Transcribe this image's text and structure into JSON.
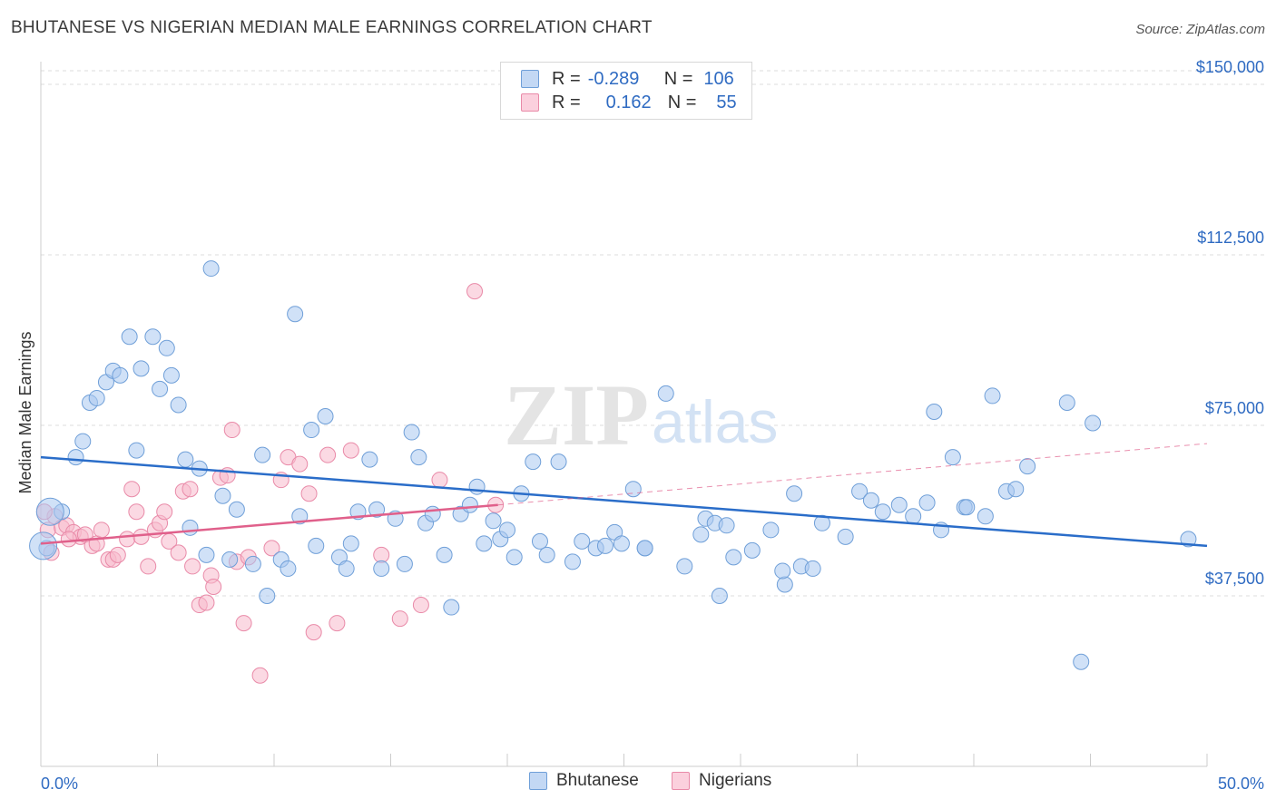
{
  "header": {
    "title": "BHUTANESE VS NIGERIAN MEDIAN MALE EARNINGS CORRELATION CHART",
    "source": "Source: ZipAtlas.com"
  },
  "watermark": {
    "zip": "ZIP",
    "atlas": "atlas"
  },
  "legend_top": {
    "rows": [
      {
        "r_label": "R =",
        "r_value": "-0.289",
        "n_label": "N =",
        "n_value": "106",
        "color": "#a9c8f0"
      },
      {
        "r_label": "R =",
        "r_value": "0.162",
        "n_label": "N =",
        "n_value": "55",
        "color": "#f7b9cc"
      }
    ]
  },
  "legend_bottom": {
    "items": [
      "Bhutanese",
      "Nigerians"
    ]
  },
  "chart_data": {
    "type": "scatter",
    "title": "BHUTANESE VS NIGERIAN MEDIAN MALE EARNINGS CORRELATION CHART",
    "xlabel": "",
    "ylabel": "Median Male Earnings",
    "xlim": [
      0,
      50
    ],
    "ylim": [
      0,
      153000
    ],
    "x_tick_labels": [
      "0.0%",
      "50.0%"
    ],
    "y_ticks": [
      37500,
      75000,
      112500,
      150000
    ],
    "y_tick_labels": [
      "$37,500",
      "$75,000",
      "$112,500",
      "$150,000"
    ],
    "grid": "horizontal dashed",
    "legend_position": "bottom",
    "series": [
      {
        "name": "Bhutanese",
        "color": "#a9c8f0",
        "edge": "#6f9fd8",
        "trend": {
          "x": [
            0,
            50
          ],
          "y": [
            68000,
            48500
          ],
          "color": "#2a6dc9"
        },
        "points": [
          [
            0.9,
            56000
          ],
          [
            1.5,
            68000
          ],
          [
            1.8,
            71500
          ],
          [
            2.1,
            80000
          ],
          [
            2.4,
            81000
          ],
          [
            2.8,
            84500
          ],
          [
            3.1,
            87000
          ],
          [
            3.4,
            86000
          ],
          [
            3.8,
            94500
          ],
          [
            4.1,
            69500
          ],
          [
            4.3,
            87500
          ],
          [
            4.8,
            94500
          ],
          [
            5.1,
            83000
          ],
          [
            5.4,
            92000
          ],
          [
            5.6,
            86000
          ],
          [
            5.9,
            79500
          ],
          [
            6.2,
            67500
          ],
          [
            6.4,
            52500
          ],
          [
            6.8,
            65500
          ],
          [
            7.1,
            46500
          ],
          [
            7.3,
            109500
          ],
          [
            7.8,
            59500
          ],
          [
            8.1,
            45500
          ],
          [
            8.4,
            56500
          ],
          [
            9.1,
            44500
          ],
          [
            9.5,
            68500
          ],
          [
            9.7,
            37500
          ],
          [
            10.3,
            45500
          ],
          [
            10.6,
            43500
          ],
          [
            10.9,
            99500
          ],
          [
            11.1,
            55000
          ],
          [
            11.6,
            74000
          ],
          [
            11.8,
            48500
          ],
          [
            12.2,
            77000
          ],
          [
            12.8,
            46000
          ],
          [
            13.1,
            43500
          ],
          [
            13.3,
            49000
          ],
          [
            13.6,
            56000
          ],
          [
            14.1,
            67500
          ],
          [
            14.4,
            56500
          ],
          [
            14.6,
            43500
          ],
          [
            15.2,
            54500
          ],
          [
            15.6,
            44500
          ],
          [
            15.9,
            73500
          ],
          [
            16.2,
            68000
          ],
          [
            16.5,
            53500
          ],
          [
            16.8,
            55500
          ],
          [
            17.3,
            46500
          ],
          [
            17.6,
            35000
          ],
          [
            18.0,
            55500
          ],
          [
            18.4,
            57500
          ],
          [
            18.7,
            61500
          ],
          [
            19.0,
            49000
          ],
          [
            19.4,
            54000
          ],
          [
            19.7,
            50000
          ],
          [
            20.0,
            52000
          ],
          [
            20.3,
            46000
          ],
          [
            20.6,
            60000
          ],
          [
            21.1,
            67000
          ],
          [
            21.4,
            49500
          ],
          [
            21.7,
            46500
          ],
          [
            22.2,
            67000
          ],
          [
            22.8,
            45000
          ],
          [
            23.2,
            49500
          ],
          [
            23.8,
            48000
          ],
          [
            24.2,
            48500
          ],
          [
            24.6,
            51500
          ],
          [
            24.9,
            49000
          ],
          [
            25.4,
            61000
          ],
          [
            25.9,
            48000
          ],
          [
            25.9,
            48000
          ],
          [
            26.8,
            82000
          ],
          [
            27.6,
            44000
          ],
          [
            28.3,
            51000
          ],
          [
            28.5,
            54500
          ],
          [
            28.9,
            53500
          ],
          [
            29.1,
            37500
          ],
          [
            29.4,
            53000
          ],
          [
            29.7,
            46000
          ],
          [
            30.5,
            47500
          ],
          [
            31.3,
            52000
          ],
          [
            31.9,
            40000
          ],
          [
            31.8,
            43000
          ],
          [
            32.3,
            60000
          ],
          [
            32.6,
            44000
          ],
          [
            33.1,
            43500
          ],
          [
            33.5,
            53500
          ],
          [
            34.5,
            50500
          ],
          [
            35.1,
            60500
          ],
          [
            35.6,
            58500
          ],
          [
            36.1,
            56000
          ],
          [
            36.8,
            57500
          ],
          [
            37.4,
            55000
          ],
          [
            38.0,
            58000
          ],
          [
            38.3,
            78000
          ],
          [
            38.6,
            52000
          ],
          [
            39.1,
            68000
          ],
          [
            39.6,
            57000
          ],
          [
            39.7,
            57000
          ],
          [
            40.5,
            55000
          ],
          [
            40.8,
            81500
          ],
          [
            41.4,
            60500
          ],
          [
            41.8,
            61000
          ],
          [
            42.3,
            66000
          ],
          [
            44.0,
            80000
          ],
          [
            45.1,
            75500
          ],
          [
            44.6,
            23000
          ],
          [
            49.2,
            50000
          ],
          [
            0.25,
            48000
          ]
        ],
        "large_points": [
          [
            0.4,
            56000
          ],
          [
            0.1,
            48500
          ]
        ]
      },
      {
        "name": "Nigerians",
        "color": "#f7b9cc",
        "edge": "#e98aa8",
        "trend": {
          "x": [
            0,
            19.6
          ],
          "y": [
            49000,
            57500
          ],
          "color": "#e0608b",
          "extended_to": [
            50,
            71000
          ]
        },
        "points": [
          [
            0.3,
            52000
          ],
          [
            0.6,
            55000
          ],
          [
            0.9,
            52500
          ],
          [
            1.1,
            53000
          ],
          [
            1.4,
            51500
          ],
          [
            1.7,
            50500
          ],
          [
            1.9,
            51000
          ],
          [
            2.2,
            48500
          ],
          [
            2.4,
            49000
          ],
          [
            2.6,
            52000
          ],
          [
            2.9,
            45500
          ],
          [
            3.1,
            45500
          ],
          [
            3.3,
            46500
          ],
          [
            3.7,
            50000
          ],
          [
            3.9,
            61000
          ],
          [
            4.1,
            56000
          ],
          [
            4.3,
            50500
          ],
          [
            4.6,
            44000
          ],
          [
            4.9,
            52000
          ],
          [
            5.1,
            53500
          ],
          [
            5.3,
            56000
          ],
          [
            5.5,
            49500
          ],
          [
            5.9,
            47000
          ],
          [
            6.1,
            60500
          ],
          [
            6.4,
            61000
          ],
          [
            6.5,
            44000
          ],
          [
            6.8,
            35500
          ],
          [
            7.1,
            36000
          ],
          [
            7.3,
            42000
          ],
          [
            7.4,
            39500
          ],
          [
            7.7,
            63500
          ],
          [
            8.0,
            64000
          ],
          [
            8.2,
            74000
          ],
          [
            8.4,
            45000
          ],
          [
            8.7,
            31500
          ],
          [
            8.9,
            46000
          ],
          [
            9.4,
            20000
          ],
          [
            9.9,
            48000
          ],
          [
            10.3,
            63000
          ],
          [
            10.6,
            68000
          ],
          [
            11.1,
            66500
          ],
          [
            11.5,
            60000
          ],
          [
            11.7,
            29500
          ],
          [
            12.3,
            68500
          ],
          [
            12.7,
            31500
          ],
          [
            13.3,
            69500
          ],
          [
            14.6,
            46500
          ],
          [
            15.4,
            32500
          ],
          [
            16.3,
            35500
          ],
          [
            17.1,
            63000
          ],
          [
            18.6,
            104500
          ],
          [
            19.5,
            57500
          ],
          [
            0.15,
            56000
          ],
          [
            0.45,
            47000
          ],
          [
            1.2,
            50000
          ]
        ]
      }
    ]
  }
}
